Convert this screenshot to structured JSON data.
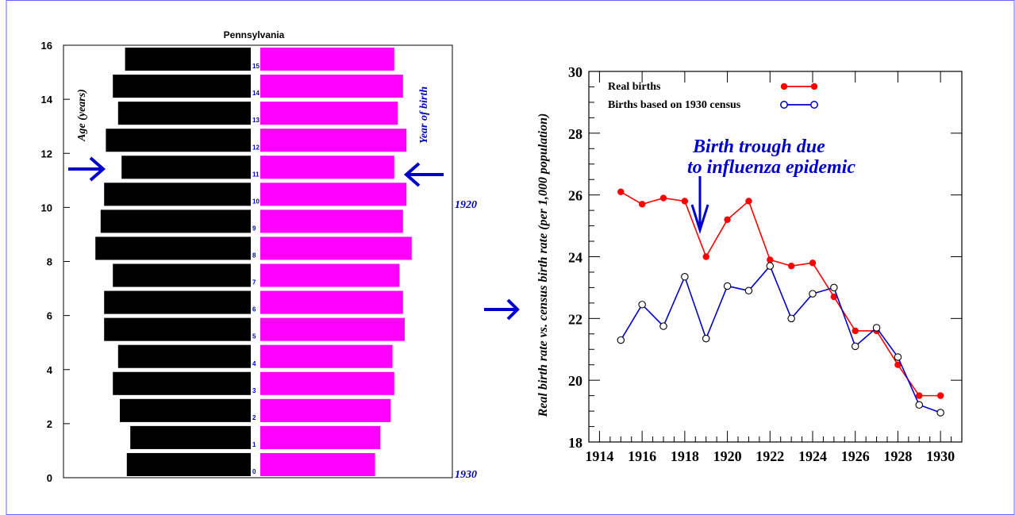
{
  "pyramid": {
    "title": "Pennsylvania",
    "ylabel": "Age (years)",
    "right_label": "Year of birth",
    "year_top": "1920",
    "year_bottom": "1930",
    "yticks": [
      "0",
      "2",
      "4",
      "6",
      "8",
      "10",
      "12",
      "14",
      "16"
    ],
    "age_labels": [
      "0",
      "1",
      "2",
      "3",
      "4",
      "5",
      "6",
      "7",
      "8",
      "9",
      "10",
      "11",
      "12",
      "13",
      "14",
      "15"
    ],
    "left_bar_color": "#000000",
    "right_bar_color": "#ff00ff",
    "arrow_color": "#0000cc"
  },
  "chart_data": [
    {
      "type": "bar",
      "title": "Pennsylvania",
      "ylabel": "Age (years)",
      "ylim": [
        0,
        16
      ],
      "categories": [
        "0",
        "1",
        "2",
        "3",
        "4",
        "5",
        "6",
        "7",
        "8",
        "9",
        "10",
        "11",
        "12",
        "13",
        "14",
        "15"
      ],
      "series": [
        {
          "values": [
            0.71,
            0.69,
            0.75,
            0.79,
            0.76,
            0.84,
            0.84,
            0.79,
            0.89,
            0.86,
            0.84,
            0.74,
            0.83,
            0.76,
            0.79,
            0.72
          ]
        },
        {
          "values": [
            0.63,
            0.66,
            0.72,
            0.74,
            0.73,
            0.8,
            0.79,
            0.77,
            0.84,
            0.79,
            0.81,
            0.74,
            0.81,
            0.76,
            0.79,
            0.74
          ]
        }
      ],
      "annotations": [
        "1920",
        "1930",
        "Year of birth"
      ]
    },
    {
      "type": "line",
      "xlabel": "",
      "ylabel": "Real birth rate vs. census birth rate (per 1,000 population)",
      "xlim": [
        1913.5,
        1931
      ],
      "ylim": [
        18,
        30
      ],
      "xticks": [
        "1914",
        "1916",
        "1918",
        "1920",
        "1922",
        "1924",
        "1926",
        "1928",
        "1930"
      ],
      "yticks": [
        "18",
        "20",
        "22",
        "24",
        "26",
        "28",
        "30"
      ],
      "x": [
        1915,
        1916,
        1917,
        1918,
        1919,
        1920,
        1921,
        1922,
        1923,
        1924,
        1925,
        1926,
        1927,
        1928,
        1929,
        1930
      ],
      "series": [
        {
          "name": "Real births",
          "color": "#ff0000",
          "marker": "filled-circle",
          "values": [
            26.1,
            25.7,
            25.9,
            25.8,
            24.0,
            25.2,
            25.8,
            23.9,
            23.7,
            23.8,
            22.7,
            21.6,
            21.6,
            20.5,
            19.5,
            19.5
          ]
        },
        {
          "name": "Births based on 1930 census",
          "color": "#0000cc",
          "marker": "open-circle",
          "values": [
            21.3,
            22.45,
            21.75,
            23.35,
            21.35,
            23.05,
            22.9,
            23.7,
            22.0,
            22.8,
            23.0,
            21.1,
            21.7,
            20.75,
            19.2,
            18.95
          ]
        }
      ],
      "annotation": [
        "Birth trough due",
        "to influenza epidemic"
      ],
      "legend_position": "top-left"
    }
  ]
}
